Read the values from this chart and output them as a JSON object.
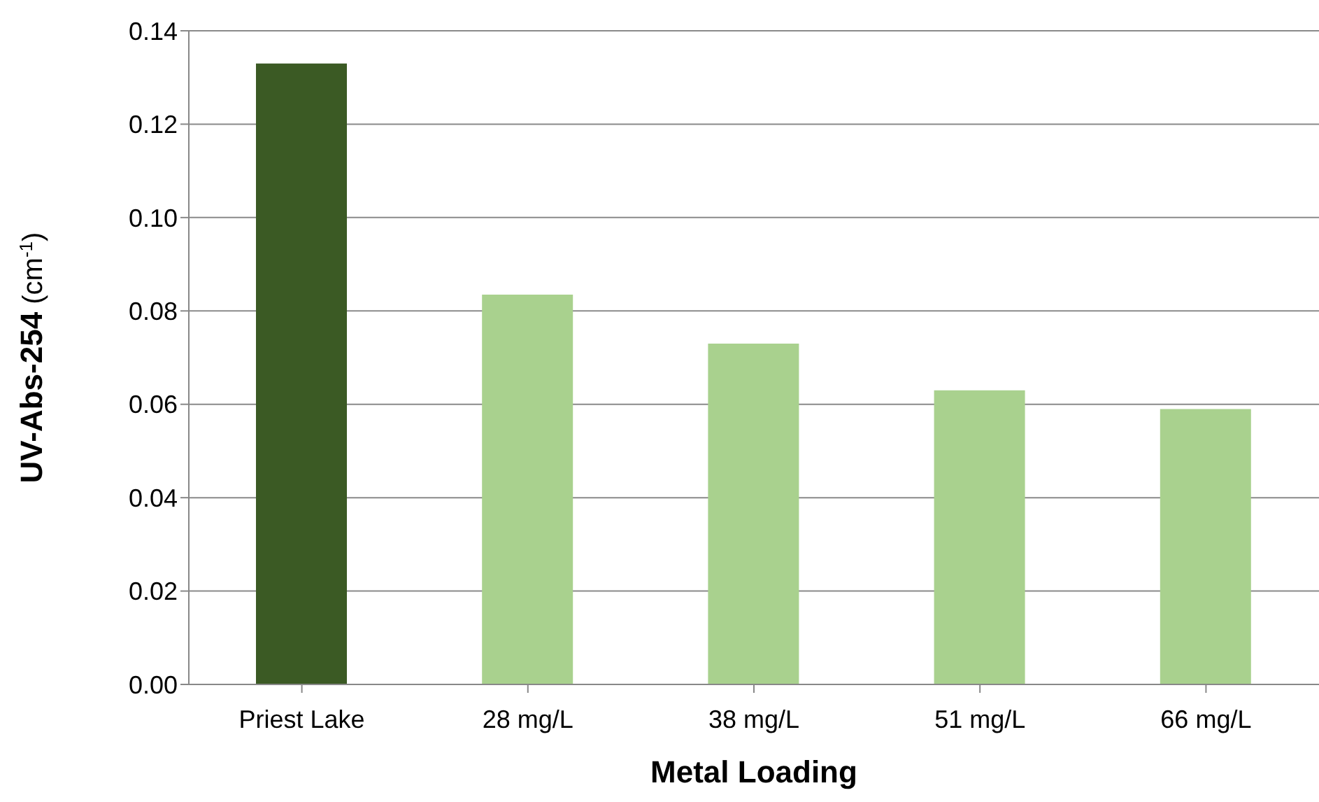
{
  "chart_data": {
    "type": "bar",
    "xlabel": "Metal Loading",
    "ylabel": "UV-Abs-254 (cm$^{-1}$)",
    "categories": [
      "Priest Lake",
      "28 mg/L",
      "38 mg/L",
      "51 mg/L",
      "66 mg/L"
    ],
    "values": [
      0.133,
      0.0835,
      0.073,
      0.063,
      0.059
    ],
    "colors": [
      "#3b5a24",
      "#a9d18e",
      "#a9d18e",
      "#a9d18e",
      "#a9d18e"
    ],
    "ylim": [
      0,
      0.14
    ],
    "yticks": [
      {
        "value": 0,
        "label": "0.00"
      },
      {
        "value": 0.02,
        "label": "0.02"
      },
      {
        "value": 0.04,
        "label": "0.04"
      },
      {
        "value": 0.06,
        "label": "0.06"
      },
      {
        "value": 0.08,
        "label": "0.08"
      },
      {
        "value": 0.1,
        "label": "0.10"
      },
      {
        "value": 0.12,
        "label": "0.12"
      },
      {
        "value": 0.14,
        "label": "0.14"
      }
    ],
    "grid": "y"
  }
}
